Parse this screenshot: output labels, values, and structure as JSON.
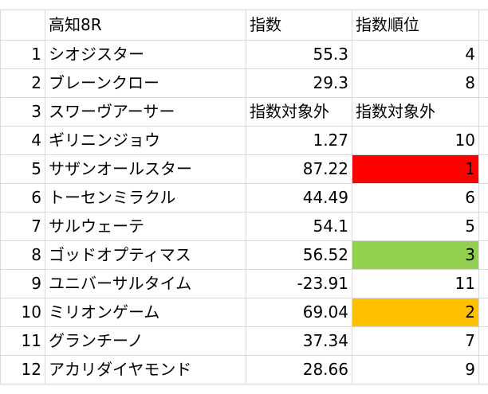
{
  "sheet": {
    "header": {
      "race": "高知8R",
      "index": "指数",
      "rank": "指数順位"
    },
    "rows": [
      {
        "num": "1",
        "name": "シオジスター",
        "index": "55.3",
        "rank": "4",
        "highlight": ""
      },
      {
        "num": "2",
        "name": "ブレーンクロー",
        "index": "29.3",
        "rank": "8",
        "highlight": ""
      },
      {
        "num": "3",
        "name": "スワーヴアーサー",
        "index": "指数対象外",
        "rank": "指数対象外",
        "highlight": ""
      },
      {
        "num": "4",
        "name": "ギリニンジョウ",
        "index": "1.27",
        "rank": "10",
        "highlight": ""
      },
      {
        "num": "5",
        "name": "サザンオールスター",
        "index": "87.22",
        "rank": "1",
        "highlight": "#ff0000"
      },
      {
        "num": "6",
        "name": "トーセンミラクル",
        "index": "44.49",
        "rank": "6",
        "highlight": ""
      },
      {
        "num": "7",
        "name": "サルウェーテ",
        "index": "54.1",
        "rank": "5",
        "highlight": ""
      },
      {
        "num": "8",
        "name": "ゴッドオプティマス",
        "index": "56.52",
        "rank": "3",
        "highlight": "#92d050"
      },
      {
        "num": "9",
        "name": "ユニバーサルタイム",
        "index": "-23.91",
        "rank": "11",
        "highlight": ""
      },
      {
        "num": "10",
        "name": "ミリオンゲーム",
        "index": "69.04",
        "rank": "2",
        "highlight": "#ffc000"
      },
      {
        "num": "11",
        "name": "グランチーノ",
        "index": "37.34",
        "rank": "7",
        "highlight": ""
      },
      {
        "num": "12",
        "name": "アカリダイヤモンド",
        "index": "28.66",
        "rank": "9",
        "highlight": ""
      }
    ]
  }
}
